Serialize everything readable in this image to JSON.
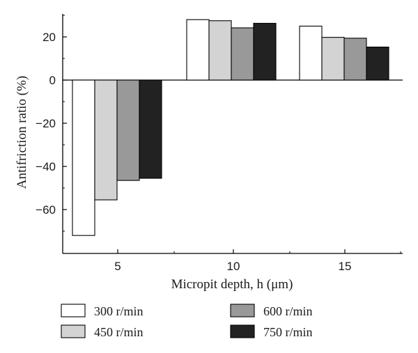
{
  "chart_data": {
    "type": "bar",
    "categories": [
      "5",
      "10",
      "15"
    ],
    "series": [
      {
        "name": "300 r/min",
        "color": "#ffffff",
        "values": [
          -72,
          28,
          25
        ]
      },
      {
        "name": "450 r/min",
        "color": "#d3d3d3",
        "values": [
          -55.5,
          27.5,
          19.8
        ]
      },
      {
        "name": "600 r/min",
        "color": "#999999",
        "values": [
          -46.5,
          24.2,
          19.4
        ]
      },
      {
        "name": "750 r/min",
        "color": "#222222",
        "values": [
          -45.5,
          26.3,
          15.3
        ]
      }
    ],
    "xlabel": "Micropit depth, h (μm)",
    "ylabel": "Antifriction ratio (%)",
    "yticks": [
      20,
      0,
      -20,
      -40,
      -60
    ],
    "ylim": [
      -80,
      30
    ],
    "grid": false,
    "legend": "bottom, two columns"
  }
}
